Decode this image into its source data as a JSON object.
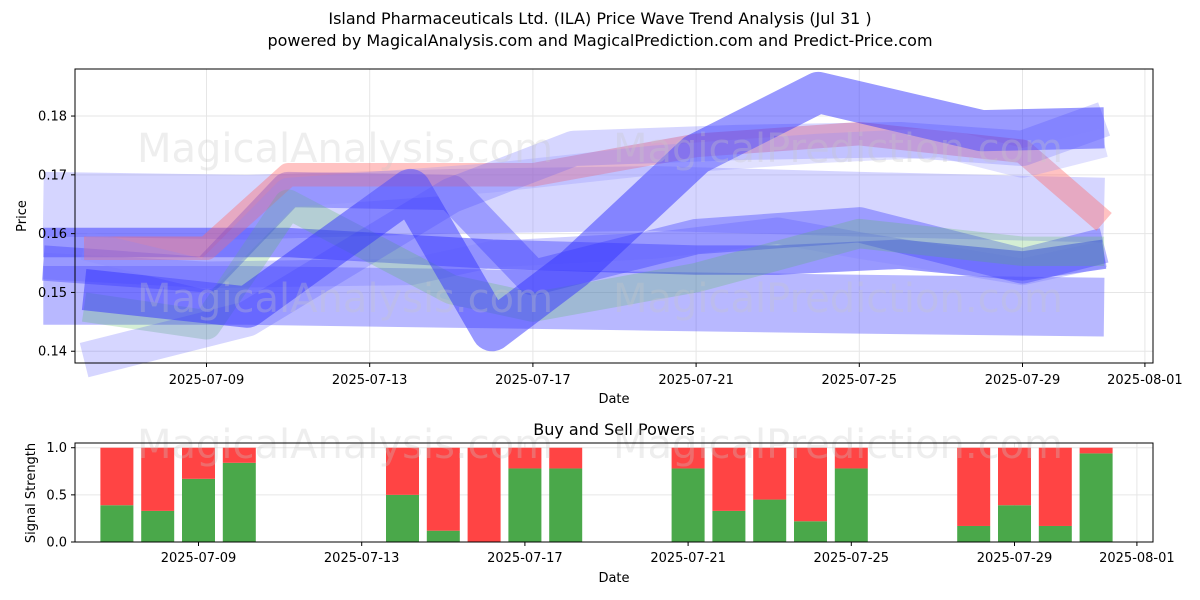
{
  "title": "Island Pharmaceuticals Ltd. (ILA) Price Wave Trend Analysis (Jul 31 )",
  "subtitle": "powered by MagicalAnalysis.com and MagicalPrediction.com and Predict-Price.com",
  "watermarks": [
    "MagicalAnalysis.com",
    "MagicalPrediction.com"
  ],
  "colors": {
    "band": "#3333ff",
    "band_light": "#8888ff",
    "red_band": "#ff6666",
    "green_band": "#55bb55",
    "buy": "#4aa84a",
    "sell": "#ff4444"
  },
  "chart_data": [
    {
      "type": "area",
      "title": "",
      "xlabel": "Date",
      "ylabel": "Price",
      "x_ticks": [
        "2025-07-09",
        "2025-07-13",
        "2025-07-17",
        "2025-07-21",
        "2025-07-25",
        "2025-07-29",
        "2025-08-01"
      ],
      "y_ticks": [
        0.14,
        0.15,
        0.16,
        0.17,
        0.18
      ],
      "xlim": [
        "2025-07-05",
        "2025-08-01"
      ],
      "ylim": [
        0.138,
        0.188
      ],
      "grid": true,
      "series": [
        {
          "dates": [
            "2025-07-05",
            "2025-07-10",
            "2025-07-15",
            "2025-07-20",
            "2025-07-25",
            "2025-07-31"
          ],
          "values": [
            0.165,
            0.1645,
            0.1655,
            0.166,
            0.165,
            0.164
          ],
          "width": 0.011,
          "opacity": 0.35
        },
        {
          "dates": [
            "2025-07-05",
            "2025-07-10",
            "2025-07-15",
            "2025-07-20",
            "2025-07-25",
            "2025-07-31"
          ],
          "values": [
            0.1495,
            0.1495,
            0.149,
            0.1485,
            0.148,
            0.1475
          ],
          "width": 0.01,
          "opacity": 0.35
        },
        {
          "dates": [
            "2025-07-05",
            "2025-07-11",
            "2025-07-16",
            "2025-07-21",
            "2025-07-23",
            "2025-07-26",
            "2025-07-29",
            "2025-07-31"
          ],
          "values": [
            0.1585,
            0.1585,
            0.1565,
            0.1555,
            0.1555,
            0.1565,
            0.1545,
            0.1565
          ],
          "width": 0.005,
          "opacity": 0.5
        },
        {
          "dates": [
            "2025-07-05",
            "2025-07-09",
            "2025-07-14",
            "2025-07-16",
            "2025-07-20",
            "2025-07-23",
            "2025-07-25",
            "2025-07-29",
            "2025-07-31"
          ],
          "values": [
            0.1545,
            0.153,
            0.1535,
            0.1565,
            0.158,
            0.1605,
            0.158,
            0.1535,
            0.1565
          ],
          "width": 0.0045,
          "opacity": 0.4
        },
        {
          "dates": [
            "2025-07-05",
            "2025-07-09",
            "2025-07-11",
            "2025-07-15",
            "2025-07-17",
            "2025-07-21",
            "2025-07-25",
            "2025-07-29",
            "2025-07-31"
          ],
          "values": [
            0.155,
            0.153,
            0.1675,
            0.167,
            0.1525,
            0.1595,
            0.1615,
            0.1545,
            0.158
          ],
          "width": 0.006,
          "opacity": 0.35
        },
        {
          "dates": [
            "2025-07-06",
            "2025-07-09",
            "2025-07-11",
            "2025-07-15",
            "2025-07-17",
            "2025-07-21",
            "2025-07-25",
            "2025-07-29",
            "2025-07-31"
          ],
          "values": [
            0.1575,
            0.1575,
            0.17,
            0.17,
            0.17,
            0.175,
            0.177,
            0.174,
            0.162
          ],
          "width": 0.004,
          "opacity": 0.4,
          "color": "red"
        },
        {
          "dates": [
            "2025-07-06",
            "2025-07-09",
            "2025-07-11",
            "2025-07-15",
            "2025-07-17",
            "2025-07-21",
            "2025-07-25",
            "2025-07-29",
            "2025-07-31"
          ],
          "values": [
            0.1475,
            0.1445,
            0.165,
            0.1505,
            0.1475,
            0.1525,
            0.16,
            0.157,
            0.157
          ],
          "width": 0.005,
          "opacity": 0.25,
          "color": "green"
        },
        {
          "dates": [
            "2025-07-06",
            "2025-07-10",
            "2025-07-14",
            "2025-07-16",
            "2025-07-18",
            "2025-07-21",
            "2025-07-24",
            "2025-07-28",
            "2025-07-31"
          ],
          "values": [
            0.1505,
            0.1475,
            0.1675,
            0.1435,
            0.154,
            0.1735,
            0.184,
            0.1775,
            0.178
          ],
          "width": 0.007,
          "opacity": 0.5
        },
        {
          "dates": [
            "2025-07-06",
            "2025-07-10",
            "2025-07-15",
            "2025-07-18",
            "2025-07-22",
            "2025-07-26",
            "2025-07-29",
            "2025-07-31"
          ],
          "values": [
            0.1385,
            0.1455,
            0.1665,
            0.1745,
            0.1755,
            0.176,
            0.1745,
            0.1795
          ],
          "width": 0.006,
          "opacity": 0.2
        },
        {
          "dates": [
            "2025-07-06",
            "2025-07-09",
            "2025-07-11",
            "2025-07-16",
            "2025-07-20",
            "2025-07-24",
            "2025-07-27",
            "2025-07-29",
            "2025-07-31"
          ],
          "values": [
            0.158,
            0.153,
            0.167,
            0.1695,
            0.1725,
            0.1745,
            0.1755,
            0.172,
            0.1755
          ],
          "width": 0.005,
          "opacity": 0.25
        }
      ]
    },
    {
      "type": "bar",
      "title": "Buy and Sell Powers",
      "xlabel": "Date",
      "ylabel": "Signal Strength",
      "x_ticks": [
        "2025-07-09",
        "2025-07-13",
        "2025-07-17",
        "2025-07-21",
        "2025-07-25",
        "2025-07-29",
        "2025-08-01"
      ],
      "y_ticks": [
        0.0,
        0.5,
        1.0
      ],
      "ylim": [
        0,
        1.05
      ],
      "grid": true,
      "dates": [
        "2025-07-07",
        "2025-07-08",
        "2025-07-09",
        "2025-07-10",
        "2025-07-14",
        "2025-07-15",
        "2025-07-16",
        "2025-07-17",
        "2025-07-18",
        "2025-07-21",
        "2025-07-22",
        "2025-07-23",
        "2025-07-24",
        "2025-07-25",
        "2025-07-28",
        "2025-07-29",
        "2025-07-30",
        "2025-07-31"
      ],
      "buy": [
        0.39,
        0.33,
        0.67,
        0.84,
        0.5,
        0.12,
        0.0,
        0.78,
        0.78,
        0.78,
        0.33,
        0.45,
        0.22,
        0.78,
        0.17,
        0.39,
        0.17,
        0.94
      ],
      "sell": [
        0.61,
        0.67,
        0.33,
        0.16,
        0.5,
        0.88,
        1.0,
        0.22,
        0.22,
        0.22,
        0.67,
        0.55,
        0.78,
        0.22,
        0.83,
        0.61,
        0.83,
        0.06
      ]
    }
  ]
}
